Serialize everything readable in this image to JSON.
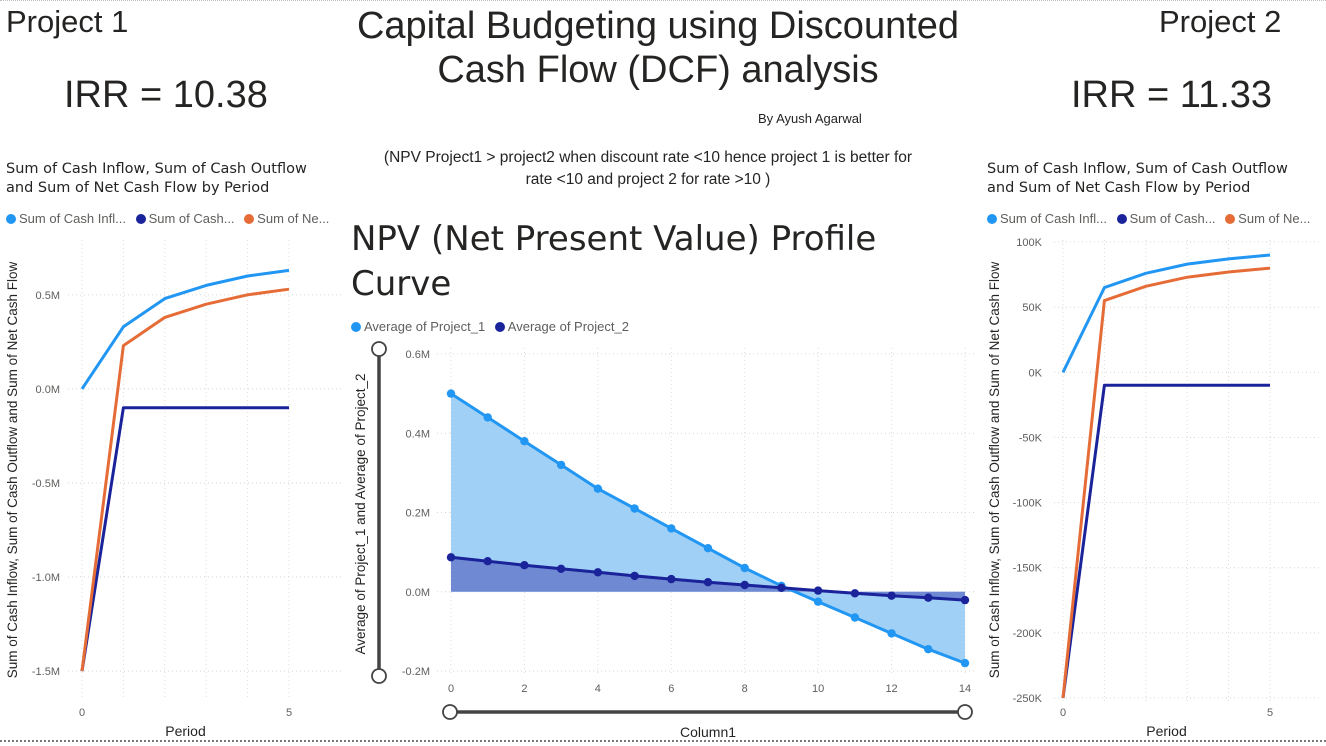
{
  "header": {
    "title_line1": "Capital Budgeting using Discounted",
    "title_line2": "Cash Flow (DCF) analysis",
    "author": "By Ayush Agarwal",
    "note_line1": "(NPV Project1 > project2 when discount rate <10 hence project 1 is better for",
    "note_line2": "rate <10 and project 2 for rate >10 )"
  },
  "project1": {
    "label": "Project 1",
    "irr": "IRR = 10.38",
    "chart_title_line1": "Sum of Cash Inflow, Sum of Cash Outflow",
    "chart_title_line2": "and Sum of Net Cash Flow by Period",
    "legend": [
      "Sum of Cash Infl...",
      "Sum of Cash...",
      "Sum of Ne..."
    ]
  },
  "project2": {
    "label": "Project 2",
    "irr": "IRR = 11.33",
    "chart_title_line1": "Sum of Cash Inflow, Sum of Cash Outflow",
    "chart_title_line2": "and Sum of Net Cash Flow by Period",
    "legend": [
      "Sum of Cash Infl...",
      "Sum of Cash...",
      "Sum of Ne..."
    ]
  },
  "npv": {
    "title_line1": "NPV (Net Present Value) Profile",
    "title_line2": "Curve",
    "legend": [
      "Average of Project_1",
      "Average of Project_2"
    ]
  },
  "colors": {
    "inflow": "#2196f3",
    "outflow": "#1a239a",
    "net": "#e66c37",
    "project1": "#2196f3",
    "project2": "#1a239a",
    "project1_fill": "#9bcdf5",
    "project2_fill": "#6a83cf"
  },
  "chart_data": [
    {
      "id": "project1_cashflows",
      "type": "line",
      "xlabel": "Period",
      "ylabel": "Sum of Cash Inflow, Sum of Cash Outflow and Sum of Net Cash Flow",
      "x": [
        0,
        1,
        2,
        3,
        4,
        5
      ],
      "xticks": [
        0,
        5
      ],
      "ylim": [
        -1.55,
        0.8
      ],
      "yticks": [
        -1.5,
        -1.0,
        -0.5,
        0.0,
        0.5
      ],
      "ytick_labels": [
        "-1.5M",
        "-1.0M",
        "-0.5M",
        "0.0M",
        "0.5M"
      ],
      "series": [
        {
          "name": "Sum of Cash Inflow",
          "values": [
            0,
            0.33,
            0.48,
            0.55,
            0.6,
            0.63
          ]
        },
        {
          "name": "Sum of Cash Outflow",
          "values": [
            -1.5,
            -0.1,
            -0.1,
            -0.1,
            -0.1,
            -0.1
          ]
        },
        {
          "name": "Sum of Net Cash Flow",
          "values": [
            -1.5,
            0.23,
            0.38,
            0.45,
            0.5,
            0.53
          ]
        }
      ]
    },
    {
      "id": "npv_profile",
      "type": "area",
      "xlabel": "Column1",
      "ylabel": "Average of Project_1 and Average of Project_2",
      "x": [
        0,
        1,
        2,
        3,
        4,
        5,
        6,
        7,
        8,
        9,
        10,
        11,
        12,
        13,
        14
      ],
      "xticks": [
        0,
        2,
        4,
        6,
        8,
        10,
        12,
        14
      ],
      "ylim": [
        -0.22,
        0.6
      ],
      "yticks": [
        -0.2,
        0.0,
        0.2,
        0.4,
        0.6
      ],
      "ytick_labels": [
        "-0.2M",
        "0.0M",
        "0.2M",
        "0.4M",
        "0.6M"
      ],
      "series": [
        {
          "name": "Average of Project_1",
          "values": [
            0.5,
            0.44,
            0.38,
            0.32,
            0.26,
            0.21,
            0.16,
            0.11,
            0.06,
            0.015,
            -0.025,
            -0.065,
            -0.105,
            -0.145,
            -0.18
          ]
        },
        {
          "name": "Average of Project_2",
          "values": [
            0.087,
            0.077,
            0.067,
            0.058,
            0.049,
            0.04,
            0.032,
            0.024,
            0.017,
            0.01,
            0.003,
            -0.004,
            -0.01,
            -0.015,
            -0.021
          ]
        }
      ]
    },
    {
      "id": "project2_cashflows",
      "type": "line",
      "xlabel": "Period",
      "ylabel": "Sum of Cash Inflow, Sum of Cash Outflow and Sum of Net Cash Flow",
      "x": [
        0,
        1,
        2,
        3,
        4,
        5
      ],
      "xticks": [
        0,
        5
      ],
      "ylim": [
        -250,
        100
      ],
      "yticks": [
        -250,
        -200,
        -150,
        -100,
        -50,
        0,
        50,
        100
      ],
      "ytick_labels": [
        "-250K",
        "-200K",
        "-150K",
        "-100K",
        "-50K",
        "0K",
        "50K",
        "100K"
      ],
      "series": [
        {
          "name": "Sum of Cash Inflow",
          "values": [
            0,
            65,
            76,
            83,
            87,
            90
          ]
        },
        {
          "name": "Sum of Cash Outflow",
          "values": [
            -250,
            -10,
            -10,
            -10,
            -10,
            -10
          ]
        },
        {
          "name": "Sum of Net Cash Flow",
          "values": [
            -250,
            55,
            66,
            73,
            77,
            80
          ]
        }
      ]
    }
  ]
}
